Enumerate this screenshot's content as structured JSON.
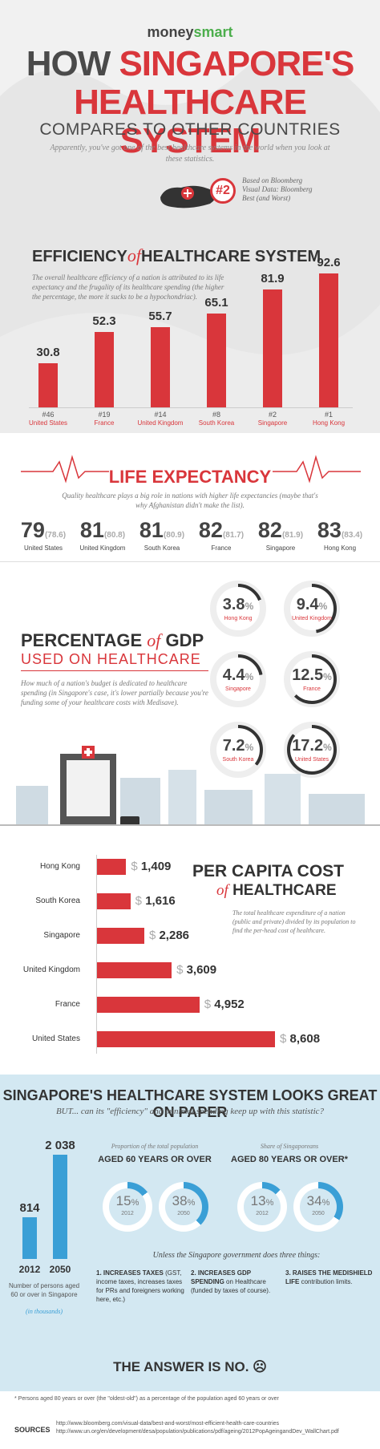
{
  "header": {
    "logo_money": "money",
    "logo_smart": "smart",
    "title_1": "HOW",
    "title_1b": "SINGAPORE'S",
    "title_2": "HEALTHCARE SYSTEM",
    "title_3": "COMPARES TO OTHER COUNTRIES",
    "subtitle": "Apparently, you've got one of the best healthcare systems in the world when you look at these statistics.",
    "rank_badge": "#2",
    "rank_note": "Based on Bloomberg Visual Data: Bloomberg Best (and Worst)"
  },
  "efficiency": {
    "title_a": "EFFICIENCY",
    "title_of": "of",
    "title_b": "HEALTHCARE SYSTEM",
    "desc": "The overall healthcare efficiency of a nation is attributed to its life expectancy and the frugality of its healthcare spending (the higher the percentage, the more it sucks to be a hypochondriac).",
    "items": [
      {
        "rank": "#46",
        "country": "United States",
        "value": "30.8",
        "v": 30.8
      },
      {
        "rank": "#19",
        "country": "France",
        "value": "52.3",
        "v": 52.3
      },
      {
        "rank": "#14",
        "country": "United Kingdom",
        "value": "55.7",
        "v": 55.7
      },
      {
        "rank": "#8",
        "country": "South Korea",
        "value": "65.1",
        "v": 65.1
      },
      {
        "rank": "#2",
        "country": "Singapore",
        "value": "81.9",
        "v": 81.9
      },
      {
        "rank": "#1",
        "country": "Hong Kong",
        "value": "92.6",
        "v": 92.6
      }
    ]
  },
  "life": {
    "title": "LIFE EXPECTANCY",
    "desc": "Quality healthcare plays a big role in nations with higher life expectancies (maybe that's why Afghanistan didn't make the list).",
    "items": [
      {
        "big": "79",
        "small": "(78.6)",
        "country": "United States"
      },
      {
        "big": "81",
        "small": "(80.8)",
        "country": "United Kingdom"
      },
      {
        "big": "81",
        "small": "(80.9)",
        "country": "South Korea"
      },
      {
        "big": "82",
        "small": "(81.7)",
        "country": "France"
      },
      {
        "big": "82",
        "small": "(81.9)",
        "country": "Singapore"
      },
      {
        "big": "83",
        "small": "(83.4)",
        "country": "Hong Kong"
      }
    ]
  },
  "gdp": {
    "title_a": "PERCENTAGE",
    "title_of": "of",
    "title_b": "GDP",
    "title_2": "USED ON HEALTHCARE",
    "desc": "How much of a nation's budget is dedicated to healthcare spending (in Singapore's case, it's lower partially because you're funding some of your healthcare costs with Medisave).",
    "items": [
      {
        "value": "3.8",
        "country": "Hong Kong",
        "pct": 3.8
      },
      {
        "value": "9.4",
        "country": "United Kingdom",
        "pct": 9.4
      },
      {
        "value": "4.4",
        "country": "Singapore",
        "pct": 4.4
      },
      {
        "value": "12.5",
        "country": "France",
        "pct": 12.5
      },
      {
        "value": "7.2",
        "country": "South Korea",
        "pct": 7.2
      },
      {
        "value": "17.2",
        "country": "United States",
        "pct": 17.2
      }
    ],
    "percent_sign": "%"
  },
  "per_capita": {
    "title_1": "PER CAPITA COST",
    "title_of": "of",
    "title_2": "HEALTHCARE",
    "desc": "The total healthcare expenditure of a nation (public and private) divided by its population to find the per-head cost of healthcare.",
    "items": [
      {
        "country": "Hong Kong",
        "value": "1,409",
        "v": 1409
      },
      {
        "country": "South Korea",
        "value": "1,616",
        "v": 1616
      },
      {
        "country": "Singapore",
        "value": "2,286",
        "v": 2286
      },
      {
        "country": "United Kingdom",
        "value": "3,609",
        "v": 3609
      },
      {
        "country": "France",
        "value": "4,952",
        "v": 4952
      },
      {
        "country": "United States",
        "value": "8,608",
        "v": 8608
      }
    ],
    "currency": "$"
  },
  "aging": {
    "title": "SINGAPORE'S HEALTHCARE SYSTEM LOOKS GREAT ON PAPER",
    "subtitle": "BUT... can its \"efficiency\" and minimal spending keep up with this statistic?",
    "bars": [
      {
        "year": "2012",
        "value": "814",
        "v": 814
      },
      {
        "year": "2050",
        "value": "2 038",
        "v": 2038
      }
    ],
    "bar_caption": "Number of persons aged 60 or over in Singapore",
    "bar_caption_unit": "(in thousands)",
    "group1_top": "Proportion of the total population",
    "group1_head": "AGED 60 YEARS OR OVER",
    "group2_top": "Share of Singaporeans",
    "group2_head": "AGED 80 YEARS OR OVER*",
    "rings": [
      {
        "value": "15",
        "year": "2012",
        "pct": 15
      },
      {
        "value": "38",
        "year": "2050",
        "pct": 38
      },
      {
        "value": "13",
        "year": "2012",
        "pct": 13
      },
      {
        "value": "34",
        "year": "2050",
        "pct": 34
      }
    ],
    "unless": "Unless the Singapore government does three things:",
    "steps": [
      {
        "head": "1. INCREASES TAXES",
        "body": "(GST, income taxes, increases taxes for PRs and foreigners working here, etc.)"
      },
      {
        "head": "2. INCREASES GDP SPENDING",
        "body": "on Healthcare (funded by taxes of course)."
      },
      {
        "head": "3. RAISES THE MEDISHIELD LIFE",
        "body": "contribution limits."
      }
    ],
    "answer": "THE ANSWER IS NO. ☹"
  },
  "footer": {
    "note": "* Persons aged 80 years or over (the \"oldest-old\") as a percentage of the population aged 60 years or over",
    "sources_label": "SOURCES",
    "source_1": "http://www.bloomberg.com/visual-data/best-and-worst/most-efficient-health-care-countries",
    "source_2": "http://www.un.org/en/development/desa/population/publications/pdf/ageing/2012PopAgeingandDev_WallChart.pdf"
  },
  "colors": {
    "accent": "#d9363b",
    "blue": "#3a9fd6",
    "light_blue": "#d3e8f2"
  }
}
